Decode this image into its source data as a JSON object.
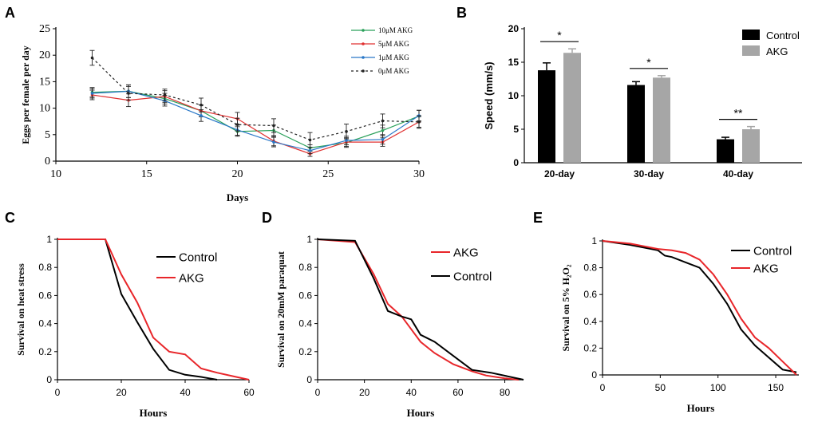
{
  "panels": {
    "A": {
      "label": "A",
      "chart_data": {
        "type": "line",
        "xlabel": "Days",
        "ylabel": "Eggs per female per day",
        "xlim": [
          10,
          30
        ],
        "ylim": [
          0,
          25
        ],
        "xticks": [
          10,
          15,
          20,
          25,
          30
        ],
        "yticks": [
          0,
          5,
          10,
          15,
          20,
          25
        ],
        "legend_position": "top-right",
        "grid": false,
        "series": [
          {
            "name": "10μM AKG",
            "color": "#2aa05a",
            "dash": "",
            "markers": true,
            "x": [
              12,
              14,
              16,
              18,
              20,
              22,
              24,
              26,
              28,
              30
            ],
            "y": [
              13,
              13.2,
              11.8,
              9.5,
              5.6,
              5.8,
              2.5,
              3.5,
              5.8,
              8.5
            ],
            "err": [
              0.9,
              1.2,
              1.0,
              1.1,
              0.9,
              1.0,
              0.6,
              0.9,
              1.0,
              1.1
            ]
          },
          {
            "name": "5μM AKG",
            "color": "#e03030",
            "dash": "",
            "markers": true,
            "x": [
              12,
              14,
              16,
              18,
              20,
              22,
              24,
              26,
              28,
              30
            ],
            "y": [
              12.5,
              11.5,
              12.2,
              9.5,
              8,
              3.8,
              1.4,
              3.6,
              3.6,
              7.4
            ],
            "err": [
              0.9,
              1.2,
              1.1,
              1.1,
              1.2,
              0.9,
              0.5,
              0.8,
              0.8,
              1.0
            ]
          },
          {
            "name": "1μM AKG",
            "color": "#2a78c8",
            "dash": "",
            "markers": true,
            "x": [
              12,
              14,
              16,
              18,
              20,
              22,
              24,
              26,
              28,
              30
            ],
            "y": [
              12.8,
              13.2,
              11.4,
              8.6,
              5.9,
              3.6,
              2.0,
              3.9,
              4.1,
              8.6
            ],
            "err": [
              0.9,
              1.2,
              1.0,
              1.1,
              1.0,
              0.9,
              0.6,
              0.8,
              0.9,
              1.0
            ]
          },
          {
            "name": "0μM AKG",
            "color": "#222222",
            "dash": "3,3",
            "markers": true,
            "x": [
              12,
              14,
              16,
              18,
              20,
              22,
              24,
              26,
              28,
              30
            ],
            "y": [
              19.5,
              12.8,
              12.5,
              10.6,
              6.9,
              6.7,
              4,
              5.6,
              7.6,
              7.4
            ],
            "err": [
              1.4,
              1.3,
              1.1,
              1.3,
              1.2,
              1.3,
              1.4,
              1.4,
              1.3,
              1.2
            ]
          }
        ]
      }
    },
    "B": {
      "label": "B",
      "chart_data": {
        "type": "bar",
        "xlabel": "",
        "ylabel": "Speed (mm/s)",
        "categories": [
          "20-day",
          "30-day",
          "40-day"
        ],
        "ylim": [
          0,
          20
        ],
        "yticks": [
          0,
          5,
          10,
          15,
          20
        ],
        "legend_position": "top-right",
        "series": [
          {
            "name": "Control",
            "color": "#000000",
            "values": [
              13.8,
              11.6,
              3.5
            ],
            "err": [
              1.1,
              0.5,
              0.3
            ]
          },
          {
            "name": "AKG",
            "color": "#a6a6a6",
            "values": [
              16.4,
              12.7,
              5.0
            ],
            "err": [
              0.6,
              0.3,
              0.4
            ]
          }
        ],
        "significance": [
          "*",
          "*",
          "**"
        ]
      }
    },
    "C": {
      "label": "C",
      "chart_data": {
        "type": "line",
        "xlabel": "Hours",
        "ylabel": "Survival on  heat stress",
        "xlim": [
          0,
          60
        ],
        "ylim": [
          0,
          1
        ],
        "xticks": [
          0,
          20,
          40,
          60
        ],
        "yticks": [
          0,
          0.2,
          0.4,
          0.6,
          0.8,
          1
        ],
        "legend_position": "top-right",
        "series": [
          {
            "name": "Control",
            "color": "#000000",
            "x": [
              0,
              15,
              20,
              25,
              30,
              35,
              40,
              45,
              50
            ],
            "y": [
              1,
              1,
              0.61,
              0.41,
              0.22,
              0.07,
              0.035,
              0.02,
              0
            ]
          },
          {
            "name": "AKG",
            "color": "#e8262a",
            "x": [
              0,
              15,
              20,
              25,
              30,
              35,
              40,
              45,
              50,
              55,
              60
            ],
            "y": [
              1,
              1,
              0.75,
              0.55,
              0.3,
              0.2,
              0.18,
              0.08,
              0.05,
              0.025,
              0
            ]
          }
        ]
      }
    },
    "D": {
      "label": "D",
      "chart_data": {
        "type": "line",
        "xlabel": "Hours",
        "ylabel": "Survival on 20mM paraquat",
        "xlim": [
          0,
          88
        ],
        "ylim": [
          0,
          1
        ],
        "xticks": [
          0,
          20,
          40,
          60,
          80
        ],
        "yticks": [
          0,
          0.2,
          0.4,
          0.6,
          0.8,
          1
        ],
        "legend_position": "top-right",
        "series": [
          {
            "name": "AKG",
            "color": "#e8262a",
            "x": [
              0,
              16,
              24,
              30,
              36,
              44,
              50,
              58,
              66,
              72,
              80,
              86
            ],
            "y": [
              1,
              0.98,
              0.75,
              0.54,
              0.45,
              0.27,
              0.19,
              0.11,
              0.06,
              0.03,
              0.01,
              0
            ]
          },
          {
            "name": "Control",
            "color": "#000000",
            "x": [
              0,
              16,
              24,
              30,
              36,
              40,
              44,
              50,
              58,
              66,
              74,
              88
            ],
            "y": [
              1,
              0.99,
              0.72,
              0.49,
              0.45,
              0.43,
              0.32,
              0.27,
              0.17,
              0.07,
              0.05,
              0
            ]
          }
        ]
      }
    },
    "E": {
      "label": "E",
      "chart_data": {
        "type": "line",
        "xlabel": "Hours",
        "ylabel": "Survival on 5% H₂O₂",
        "xlim": [
          0,
          170
        ],
        "ylim": [
          0,
          1
        ],
        "xticks": [
          0,
          50,
          100,
          150
        ],
        "yticks": [
          0,
          0.2,
          0.4,
          0.6,
          0.8,
          1
        ],
        "legend_position": "top-right",
        "series": [
          {
            "name": "Control",
            "color": "#000000",
            "x": [
              0,
              24,
              36,
              48,
              54,
              60,
              72,
              84,
              96,
              108,
              120,
              132,
              144,
              156,
              168
            ],
            "y": [
              1,
              0.97,
              0.95,
              0.93,
              0.89,
              0.88,
              0.84,
              0.8,
              0.68,
              0.53,
              0.34,
              0.22,
              0.13,
              0.04,
              0.02
            ]
          },
          {
            "name": "AKG",
            "color": "#e8262a",
            "x": [
              0,
              24,
              36,
              48,
              60,
              72,
              84,
              96,
              108,
              120,
              132,
              144,
              156,
              168
            ],
            "y": [
              1,
              0.98,
              0.96,
              0.94,
              0.93,
              0.91,
              0.86,
              0.75,
              0.6,
              0.42,
              0.28,
              0.2,
              0.1,
              0
            ]
          }
        ]
      }
    }
  }
}
